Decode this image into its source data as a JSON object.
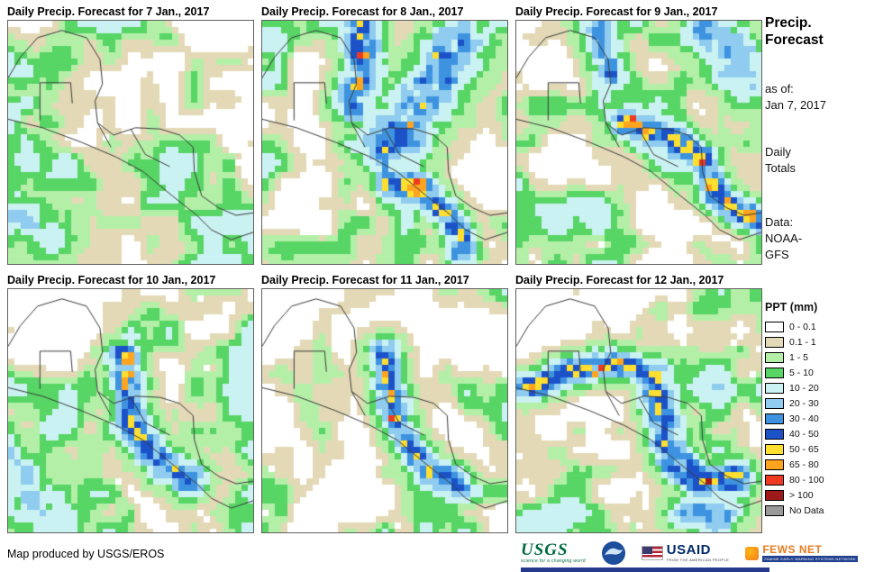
{
  "panels": [
    {
      "title": "Daily Precip. Forecast for 7 Jan., 2017"
    },
    {
      "title": "Daily Precip. Forecast for 8 Jan., 2017"
    },
    {
      "title": "Daily Precip. Forecast for 9 Jan., 2017"
    },
    {
      "title": "Daily Precip. Forecast for 10 Jan., 2017"
    },
    {
      "title": "Daily Precip. Forecast for 11 Jan., 2017"
    },
    {
      "title": "Daily Precip. Forecast for 12 Jan., 2017"
    }
  ],
  "sidebar": {
    "title_line1": "Precip.",
    "title_line2": "Forecast",
    "asof_label": "as of:",
    "asof_value": "Jan 7, 2017",
    "totals_line1": "Daily",
    "totals_line2": "Totals",
    "data_label": "Data:",
    "data_value1": "NOAA-",
    "data_value2": "GFS"
  },
  "legend": {
    "title": "PPT (mm)",
    "entries": [
      {
        "label": "0 - 0.1",
        "color": "#FFFFFF"
      },
      {
        "label": "0.1 - 1",
        "color": "#E3D9B6"
      },
      {
        "label": "1 - 5",
        "color": "#B4EFA8"
      },
      {
        "label": "5 - 10",
        "color": "#57D565"
      },
      {
        "label": "10 - 20",
        "color": "#CBF2F2"
      },
      {
        "label": "20 - 30",
        "color": "#8FCCEF"
      },
      {
        "label": "30 - 40",
        "color": "#3E93E0"
      },
      {
        "label": "40 - 50",
        "color": "#1B52C8"
      },
      {
        "label": "50 - 65",
        "color": "#FFDF30"
      },
      {
        "label": "65 - 80",
        "color": "#FFA41E"
      },
      {
        "label": "80 - 100",
        "color": "#EE3A21"
      },
      {
        "label": "> 100",
        "color": "#9E1A1A"
      },
      {
        "label": "No Data",
        "color": "#9A9A9A"
      }
    ]
  },
  "footer": {
    "credit": "Map produced by USGS/EROS",
    "usgs_label": "USGS",
    "usgs_tagline": "science for a changing world",
    "usaid_label": "USAID",
    "usaid_tagline": "FROM THE AMERICAN PEOPLE",
    "fews_label": "FEWS NET",
    "fews_tagline": "FAMINE EARLY WARNING SYSTEMS NETWORK"
  }
}
